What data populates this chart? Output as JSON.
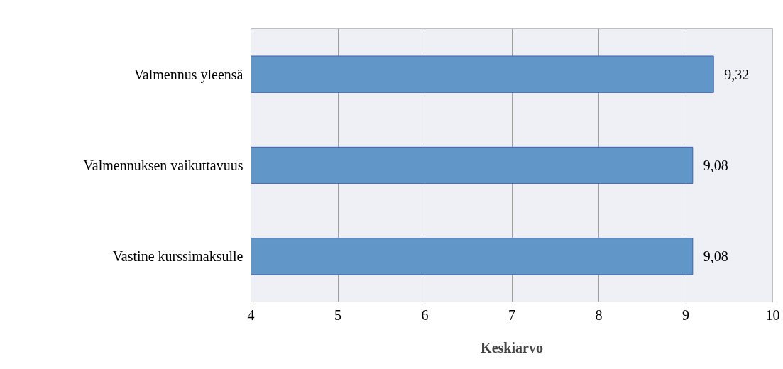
{
  "chart_data": {
    "type": "bar",
    "orientation": "horizontal",
    "xlabel": "Keskiarvo",
    "categories": [
      "Valmennus yleensä",
      "Valmennuksen vaikuttavuus",
      "Vastine kurssimaksulle"
    ],
    "values": [
      9.32,
      9.08,
      9.08
    ],
    "value_labels": [
      "9,32",
      "9,08",
      "9,08"
    ],
    "color": "#6096c8",
    "xlim": [
      4,
      10
    ],
    "xticks": [
      4,
      5,
      6,
      7,
      8,
      9,
      10
    ],
    "grid": "x"
  }
}
